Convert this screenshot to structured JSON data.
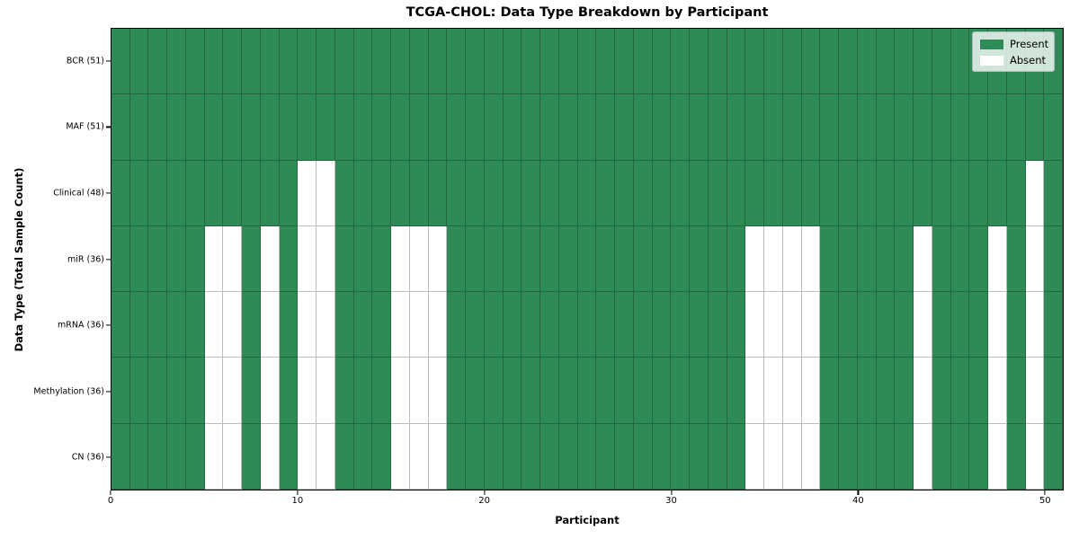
{
  "figure": {
    "background": "#ffffff"
  },
  "chart_data": {
    "type": "heatmap",
    "title": "TCGA-CHOL: Data Type Breakdown by Participant",
    "xlabel": "Participant",
    "ylabel": "Data Type (Total Sample Count)",
    "n_participants": 51,
    "x_ticks": [
      0,
      10,
      20,
      30,
      40,
      50
    ],
    "grid": true,
    "legend_position": "upper right",
    "colors": {
      "present": "#2e8b57",
      "absent": "#ffffff",
      "gridline": "rgba(0,0,0,0.26)"
    },
    "legend": [
      {
        "label": "Present",
        "color": "#2e8b57"
      },
      {
        "label": "Absent",
        "color": "#ffffff"
      }
    ],
    "rows": [
      {
        "label": "BCR (51)",
        "total_present": 51,
        "absent_participants": []
      },
      {
        "label": "MAF (51)",
        "total_present": 51,
        "absent_participants": []
      },
      {
        "label": "Clinical (48)",
        "total_present": 48,
        "absent_participants": [
          10,
          11,
          49
        ]
      },
      {
        "label": "miR (36)",
        "total_present": 36,
        "absent_participants": [
          5,
          6,
          8,
          10,
          11,
          15,
          16,
          17,
          34,
          35,
          36,
          37,
          43,
          47,
          49
        ]
      },
      {
        "label": "mRNA (36)",
        "total_present": 36,
        "absent_participants": [
          5,
          6,
          8,
          10,
          11,
          15,
          16,
          17,
          34,
          35,
          36,
          37,
          43,
          47,
          49
        ]
      },
      {
        "label": "Methylation (36)",
        "total_present": 36,
        "absent_participants": [
          5,
          6,
          8,
          10,
          11,
          15,
          16,
          17,
          34,
          35,
          36,
          37,
          43,
          47,
          49
        ]
      },
      {
        "label": "CN (36)",
        "total_present": 36,
        "absent_participants": [
          5,
          6,
          8,
          10,
          11,
          15,
          16,
          17,
          34,
          35,
          36,
          37,
          43,
          47,
          49
        ]
      }
    ]
  }
}
